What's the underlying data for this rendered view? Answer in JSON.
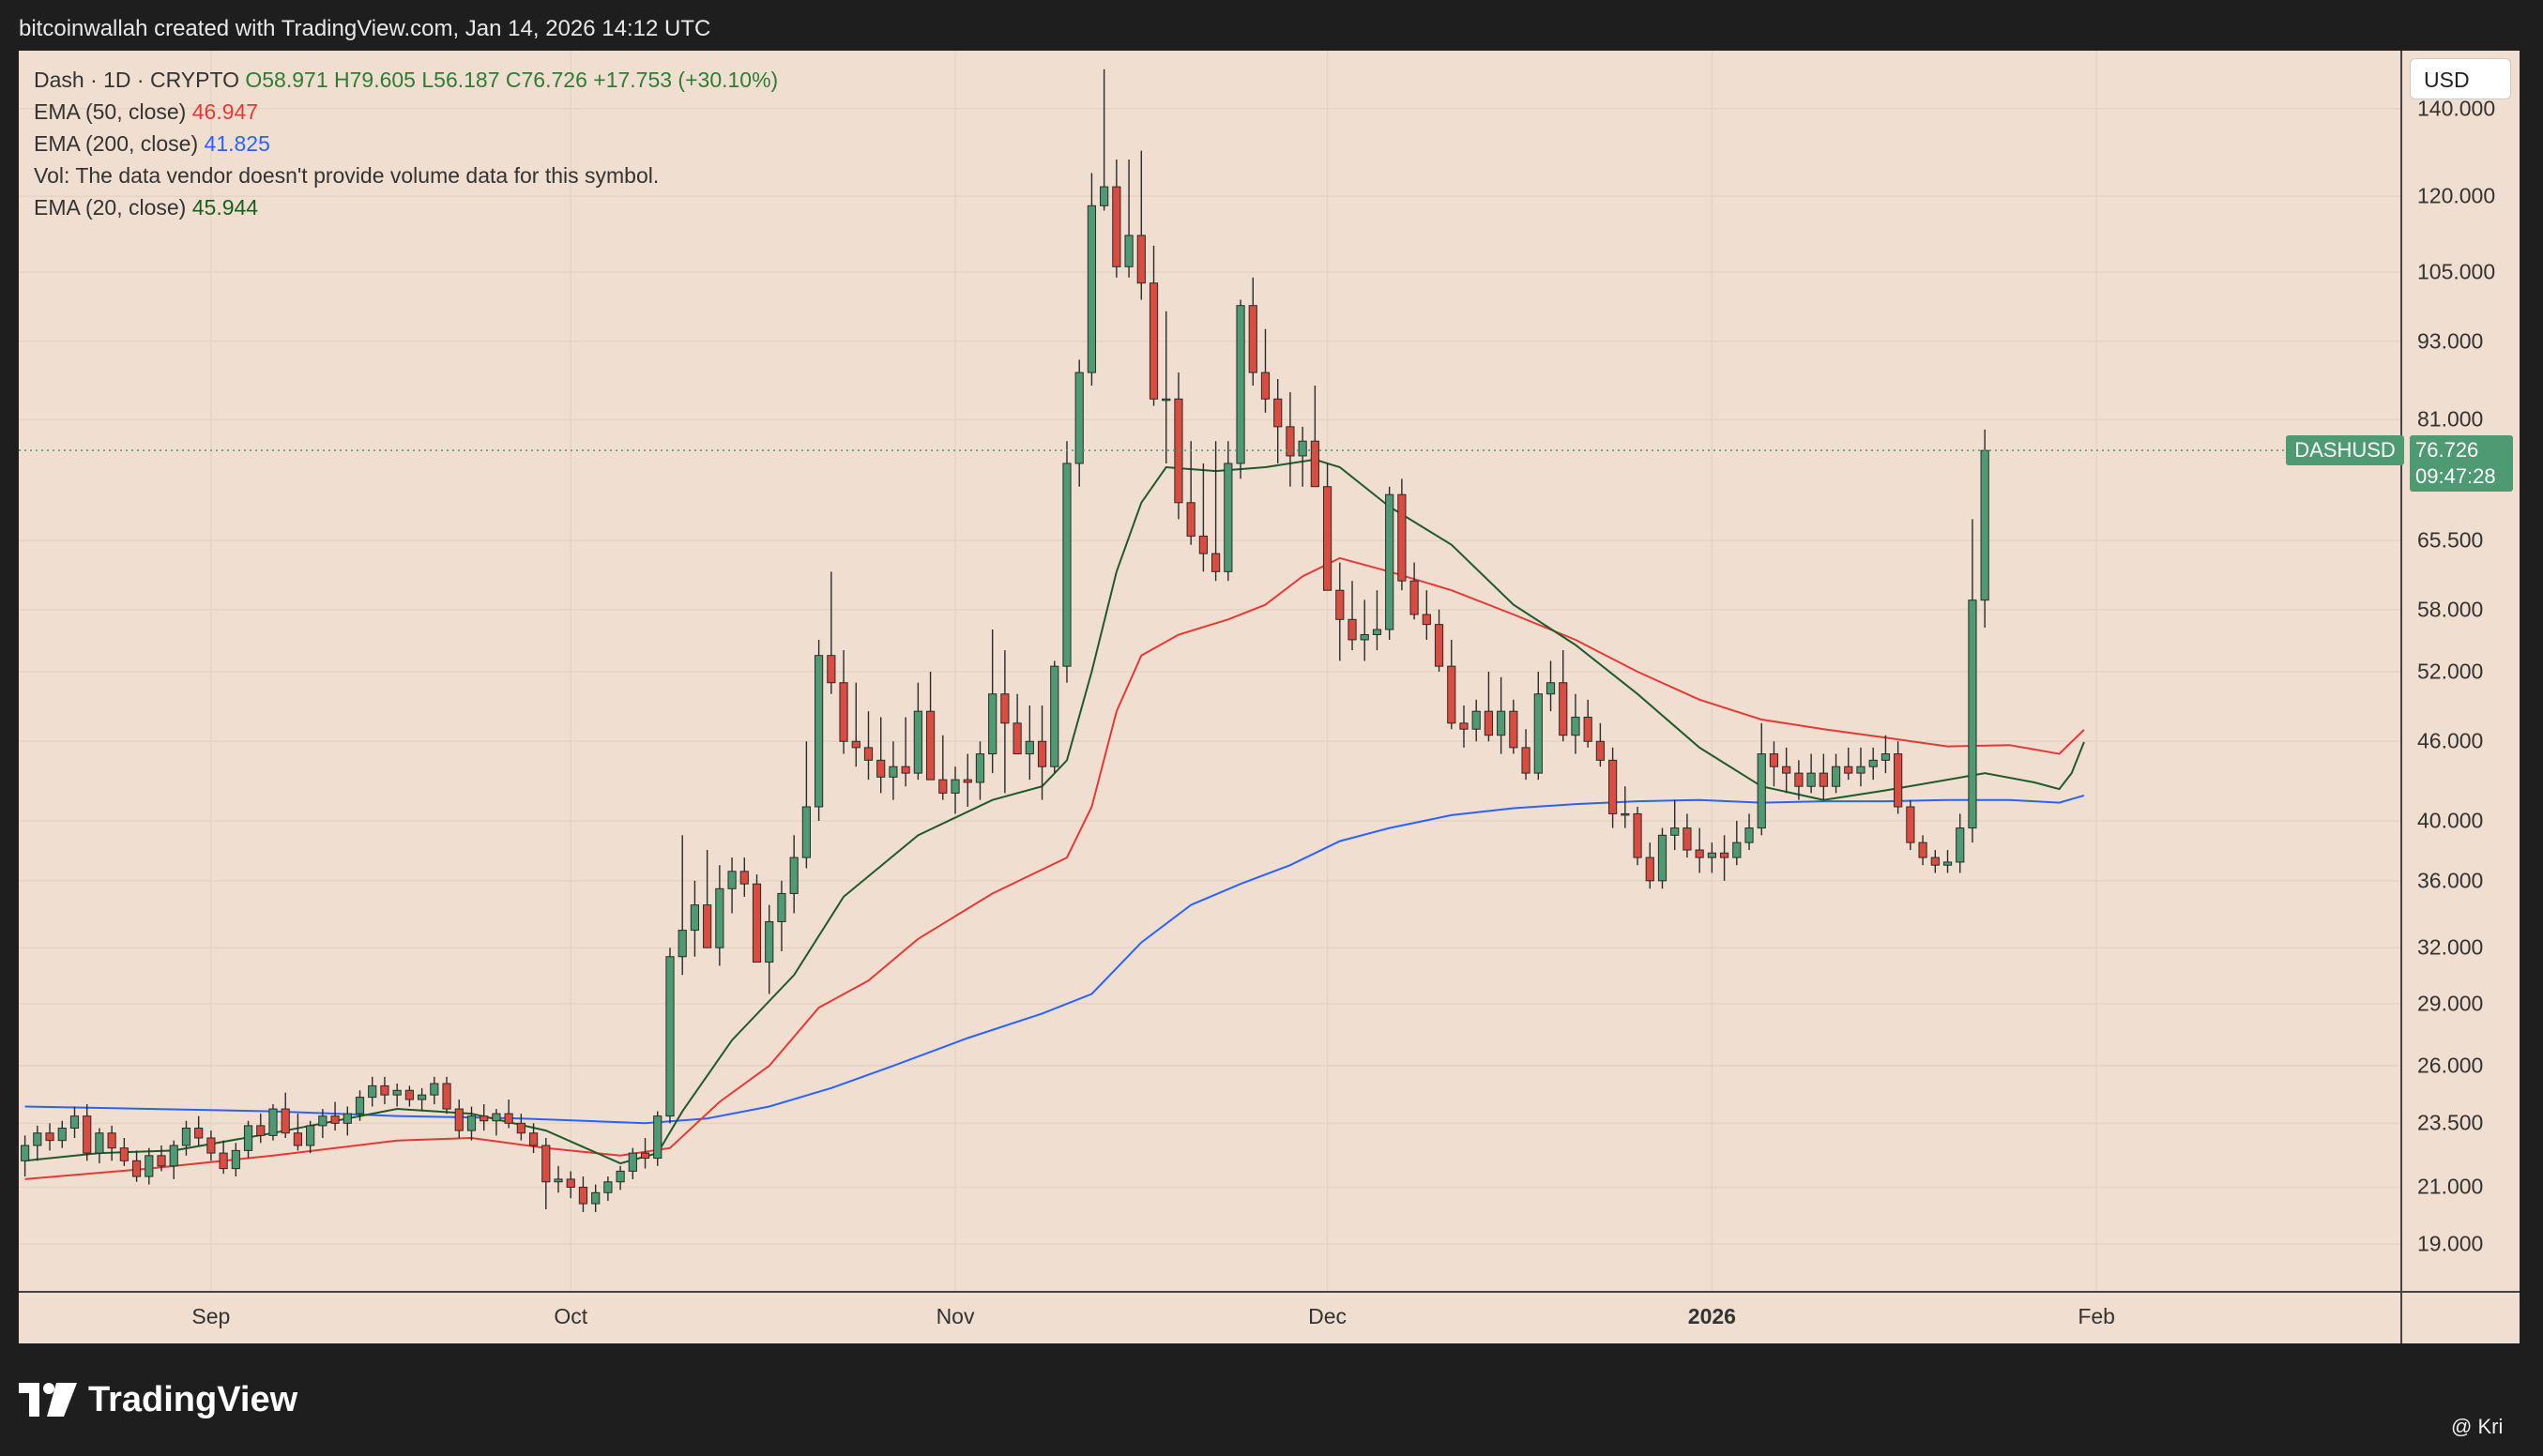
{
  "header": {
    "text": "bitcoinwallah created with TradingView.com, Jan 14, 2026 14:12 UTC"
  },
  "legend": {
    "line1": {
      "name": "Dash · 1D · CRYPTO",
      "o": "O58.971",
      "h": "H79.605",
      "l": "L56.187",
      "c": "C76.726",
      "chg": "+17.753 (+30.10%)"
    },
    "ema50": {
      "label": "EMA (50, close)",
      "value": "46.947"
    },
    "ema200": {
      "label": "EMA (200, close)",
      "value": "41.825"
    },
    "vol": {
      "text": "Vol: The data vendor doesn't provide volume data for this symbol."
    },
    "ema20": {
      "label": "EMA (20, close)",
      "value": "45.944"
    }
  },
  "currency_button": "USD",
  "last_price": {
    "symbol": "DASHUSD",
    "price": "76.726",
    "countdown": "09:47:28"
  },
  "branding": {
    "logo_text": "TradingView",
    "credit": "@ Kri"
  },
  "colors": {
    "up": "#4e9a72",
    "down": "#d94c3f",
    "ema20": "#1e5a2a",
    "ema50": "#e53935",
    "ema200": "#2962ff",
    "background": "#f0dfd0"
  },
  "chart_data": {
    "type": "candlestick",
    "symbol": "DASHUSD",
    "interval": "1D",
    "y_scale": "log",
    "ylim": [
      17.5,
      155
    ],
    "y_ticks": [
      "140.000",
      "120.000",
      "105.000",
      "93.000",
      "81.000",
      "65.500",
      "58.000",
      "52.000",
      "46.000",
      "40.000",
      "36.000",
      "32.000",
      "29.000",
      "26.000",
      "23.500",
      "21.000",
      "19.000"
    ],
    "x_ticks": [
      {
        "label": "Sep",
        "bold": false
      },
      {
        "label": "Oct",
        "bold": false
      },
      {
        "label": "Nov",
        "bold": false
      },
      {
        "label": "Dec",
        "bold": false
      },
      {
        "label": "2026",
        "bold": true
      },
      {
        "label": "Feb",
        "bold": false
      }
    ],
    "x_tick_index": [
      15,
      44,
      75,
      105,
      136,
      167
    ],
    "n_slots": 192,
    "candles": [
      [
        22.0,
        23.0,
        21.4,
        22.6
      ],
      [
        22.6,
        23.4,
        22.0,
        23.1
      ],
      [
        23.1,
        23.5,
        22.4,
        22.8
      ],
      [
        22.8,
        23.6,
        22.5,
        23.3
      ],
      [
        23.3,
        24.2,
        22.9,
        23.8
      ],
      [
        23.8,
        24.3,
        22.0,
        22.3
      ],
      [
        22.3,
        23.3,
        21.9,
        23.1
      ],
      [
        23.1,
        23.4,
        22.0,
        22.5
      ],
      [
        22.5,
        22.9,
        21.8,
        22.0
      ],
      [
        22.0,
        22.4,
        21.2,
        21.4
      ],
      [
        21.4,
        22.5,
        21.1,
        22.2
      ],
      [
        22.2,
        22.6,
        21.6,
        21.8
      ],
      [
        21.8,
        22.8,
        21.3,
        22.6
      ],
      [
        22.6,
        23.6,
        22.2,
        23.3
      ],
      [
        23.3,
        23.8,
        22.6,
        22.9
      ],
      [
        22.9,
        23.2,
        22.0,
        22.3
      ],
      [
        22.3,
        22.8,
        21.5,
        21.7
      ],
      [
        21.7,
        22.7,
        21.4,
        22.4
      ],
      [
        22.4,
        23.6,
        22.1,
        23.4
      ],
      [
        23.4,
        23.9,
        22.7,
        23.0
      ],
      [
        23.0,
        24.3,
        22.8,
        24.1
      ],
      [
        24.1,
        24.8,
        22.9,
        23.1
      ],
      [
        23.1,
        23.9,
        22.4,
        22.6
      ],
      [
        22.6,
        23.6,
        22.3,
        23.4
      ],
      [
        23.4,
        24.1,
        22.9,
        23.8
      ],
      [
        23.8,
        24.4,
        23.2,
        23.5
      ],
      [
        23.5,
        24.2,
        23.0,
        23.9
      ],
      [
        23.9,
        24.9,
        23.6,
        24.6
      ],
      [
        24.6,
        25.5,
        24.2,
        25.1
      ],
      [
        25.1,
        25.5,
        24.3,
        24.7
      ],
      [
        24.7,
        25.2,
        24.2,
        24.9
      ],
      [
        24.9,
        25.1,
        24.2,
        24.5
      ],
      [
        24.5,
        25.0,
        24.0,
        24.7
      ],
      [
        24.7,
        25.5,
        24.3,
        25.2
      ],
      [
        25.2,
        25.5,
        23.9,
        24.1
      ],
      [
        24.1,
        24.5,
        22.9,
        23.2
      ],
      [
        23.2,
        24.2,
        22.8,
        23.8
      ],
      [
        23.8,
        24.3,
        23.2,
        23.6
      ],
      [
        23.6,
        24.1,
        23.0,
        23.9
      ],
      [
        23.9,
        24.5,
        23.3,
        23.5
      ],
      [
        23.5,
        23.9,
        22.8,
        23.1
      ],
      [
        23.1,
        23.5,
        22.3,
        22.6
      ],
      [
        22.6,
        22.9,
        20.2,
        21.2
      ],
      [
        21.2,
        21.8,
        20.8,
        21.3
      ],
      [
        21.3,
        21.6,
        20.6,
        21.0
      ],
      [
        21.0,
        21.4,
        20.1,
        20.4
      ],
      [
        20.4,
        21.1,
        20.1,
        20.8
      ],
      [
        20.8,
        21.4,
        20.5,
        21.2
      ],
      [
        21.2,
        21.8,
        20.9,
        21.6
      ],
      [
        21.6,
        22.5,
        21.3,
        22.3
      ],
      [
        22.3,
        22.9,
        21.7,
        22.1
      ],
      [
        22.1,
        24.0,
        21.8,
        23.8
      ],
      [
        23.8,
        32.0,
        23.5,
        31.5
      ],
      [
        31.5,
        39.0,
        30.5,
        33.0
      ],
      [
        33.0,
        36.0,
        31.5,
        34.5
      ],
      [
        34.5,
        38.0,
        33.2,
        32.0
      ],
      [
        32.0,
        37.0,
        31.0,
        35.5
      ],
      [
        35.5,
        37.5,
        34.0,
        36.6
      ],
      [
        36.6,
        37.5,
        35.0,
        35.8
      ],
      [
        35.8,
        36.4,
        31.5,
        31.2
      ],
      [
        31.2,
        34.5,
        29.5,
        33.5
      ],
      [
        33.5,
        36.0,
        31.8,
        35.2
      ],
      [
        35.2,
        39.0,
        34.0,
        37.5
      ],
      [
        37.5,
        46.0,
        36.8,
        41.0
      ],
      [
        41.0,
        55.0,
        40.0,
        53.5
      ],
      [
        53.5,
        62.0,
        50.0,
        51.0
      ],
      [
        51.0,
        54.0,
        45.0,
        46.0
      ],
      [
        46.0,
        51.0,
        44.0,
        45.5
      ],
      [
        45.5,
        48.5,
        43.0,
        44.5
      ],
      [
        44.5,
        48.0,
        42.0,
        43.2
      ],
      [
        43.2,
        46.0,
        41.5,
        44.0
      ],
      [
        44.0,
        48.0,
        42.5,
        43.5
      ],
      [
        43.5,
        51.0,
        43.0,
        48.5
      ],
      [
        48.5,
        52.0,
        44.0,
        43.0
      ],
      [
        43.0,
        46.5,
        41.5,
        42.0
      ],
      [
        42.0,
        44.0,
        40.5,
        43.0
      ],
      [
        43.0,
        45.0,
        41.0,
        42.8
      ],
      [
        42.8,
        46.0,
        41.5,
        45.0
      ],
      [
        45.0,
        56.0,
        43.5,
        50.0
      ],
      [
        50.0,
        54.0,
        42.0,
        47.5
      ],
      [
        47.5,
        50.0,
        45.0,
        45.0
      ],
      [
        45.0,
        49.0,
        43.0,
        46.0
      ],
      [
        46.0,
        49.0,
        41.5,
        44.0
      ],
      [
        44.0,
        53.0,
        43.5,
        52.5
      ],
      [
        52.5,
        78.0,
        51.0,
        75.0
      ],
      [
        75.0,
        90.0,
        72.0,
        88.0
      ],
      [
        88.0,
        125.0,
        86.0,
        118.0
      ],
      [
        118.0,
        150.0,
        117.0,
        122.0
      ],
      [
        122.0,
        128.0,
        104.0,
        106.0
      ],
      [
        106.0,
        128.0,
        104.0,
        112.0
      ],
      [
        112.0,
        130.0,
        100.0,
        103.0
      ],
      [
        103.0,
        110.0,
        83.0,
        84.0
      ],
      [
        84.0,
        98.0,
        75.0,
        84.0
      ],
      [
        84.0,
        88.0,
        68.0,
        70.0
      ],
      [
        70.0,
        78.0,
        65.0,
        66.0
      ],
      [
        66.0,
        75.0,
        62.0,
        64.0
      ],
      [
        64.0,
        78.0,
        61.0,
        62.0
      ],
      [
        62.0,
        78.0,
        61.0,
        75.0
      ],
      [
        75.0,
        100.0,
        73.0,
        99.0
      ],
      [
        99.0,
        104.0,
        86.0,
        88.0
      ],
      [
        88.0,
        95.0,
        82.0,
        84.0
      ],
      [
        84.0,
        87.0,
        75.0,
        80.0
      ],
      [
        80.0,
        85.0,
        72.0,
        76.0
      ],
      [
        76.0,
        80.0,
        72.0,
        78.0
      ],
      [
        78.0,
        86.0,
        72.0,
        72.0
      ],
      [
        72.0,
        75.0,
        60.0,
        60.0
      ],
      [
        60.0,
        63.0,
        53.0,
        57.0
      ],
      [
        57.0,
        61.0,
        54.0,
        55.0
      ],
      [
        55.0,
        59.0,
        53.0,
        55.5
      ],
      [
        55.5,
        60.0,
        54.0,
        56.0
      ],
      [
        56.0,
        72.0,
        55.0,
        71.0
      ],
      [
        71.0,
        73.0,
        60.0,
        61.0
      ],
      [
        61.0,
        63.0,
        57.0,
        57.5
      ],
      [
        57.5,
        60.0,
        55.0,
        56.5
      ],
      [
        56.5,
        58.0,
        52.0,
        52.5
      ],
      [
        52.5,
        55.0,
        47.0,
        47.5
      ],
      [
        47.5,
        49.0,
        45.5,
        47.0
      ],
      [
        47.0,
        49.5,
        46.0,
        48.5
      ],
      [
        48.5,
        52.0,
        46.0,
        46.5
      ],
      [
        46.5,
        51.5,
        45.0,
        48.5
      ],
      [
        48.5,
        49.5,
        45.0,
        45.5
      ],
      [
        45.5,
        47.0,
        43.0,
        43.5
      ],
      [
        43.5,
        52.0,
        43.0,
        50.0
      ],
      [
        50.0,
        53.0,
        48.5,
        51.0
      ],
      [
        51.0,
        54.0,
        46.0,
        46.5
      ],
      [
        46.5,
        50.0,
        45.0,
        48.0
      ],
      [
        48.0,
        49.5,
        45.5,
        46.0
      ],
      [
        46.0,
        47.5,
        44.0,
        44.5
      ],
      [
        44.5,
        45.5,
        39.5,
        40.5
      ],
      [
        40.5,
        42.5,
        39.5,
        40.5
      ],
      [
        40.5,
        41.0,
        37.0,
        37.5
      ],
      [
        37.5,
        38.5,
        35.5,
        36.0
      ],
      [
        36.0,
        39.5,
        35.5,
        39.0
      ],
      [
        39.0,
        41.5,
        38.0,
        39.5
      ],
      [
        39.5,
        40.5,
        37.5,
        38.0
      ],
      [
        38.0,
        39.5,
        36.5,
        37.5
      ],
      [
        37.5,
        38.5,
        36.5,
        37.8
      ],
      [
        37.8,
        39.0,
        36.0,
        37.5
      ],
      [
        37.5,
        40.0,
        37.0,
        38.5
      ],
      [
        38.5,
        40.5,
        38.0,
        39.5
      ],
      [
        39.5,
        47.5,
        39.0,
        45.0
      ],
      [
        45.0,
        46.0,
        42.5,
        44.0
      ],
      [
        44.0,
        45.5,
        42.0,
        43.5
      ],
      [
        43.5,
        44.5,
        41.5,
        42.5
      ],
      [
        42.5,
        45.0,
        42.0,
        43.5
      ],
      [
        43.5,
        45.0,
        41.5,
        42.5
      ],
      [
        42.5,
        45.0,
        42.0,
        44.0
      ],
      [
        44.0,
        45.5,
        43.0,
        43.5
      ],
      [
        43.5,
        45.5,
        42.5,
        44.0
      ],
      [
        44.0,
        45.5,
        43.0,
        44.5
      ],
      [
        44.5,
        46.5,
        43.5,
        45.0
      ],
      [
        45.0,
        46.0,
        40.5,
        41.0
      ],
      [
        41.0,
        41.5,
        38.0,
        38.5
      ],
      [
        38.5,
        39.0,
        37.0,
        37.5
      ],
      [
        37.5,
        38.0,
        36.5,
        37.0
      ],
      [
        37.0,
        38.0,
        36.5,
        37.2
      ],
      [
        37.2,
        40.5,
        36.5,
        39.5
      ],
      [
        39.5,
        68.0,
        38.5,
        58.971
      ],
      [
        58.971,
        79.605,
        56.187,
        76.726
      ]
    ],
    "candle_start_index": 0,
    "ema20": [
      [
        0,
        22.0
      ],
      [
        6,
        22.3
      ],
      [
        12,
        22.4
      ],
      [
        20,
        23.1
      ],
      [
        30,
        24.1
      ],
      [
        36,
        23.9
      ],
      [
        42,
        23.2
      ],
      [
        48,
        21.9
      ],
      [
        51,
        22.3
      ],
      [
        53,
        24.0
      ],
      [
        57,
        27.2
      ],
      [
        62,
        30.5
      ],
      [
        66,
        35.0
      ],
      [
        72,
        39.0
      ],
      [
        78,
        41.5
      ],
      [
        82,
        42.5
      ],
      [
        84,
        44.5
      ],
      [
        86,
        52.0
      ],
      [
        88,
        62.0
      ],
      [
        90,
        70.0
      ],
      [
        92,
        74.5
      ],
      [
        96,
        74.0
      ],
      [
        100,
        74.5
      ],
      [
        104,
        75.5
      ],
      [
        106,
        74.5
      ],
      [
        110,
        69.5
      ],
      [
        115,
        65.0
      ],
      [
        120,
        58.5
      ],
      [
        125,
        54.5
      ],
      [
        130,
        50.0
      ],
      [
        135,
        45.5
      ],
      [
        140,
        42.5
      ],
      [
        145,
        41.5
      ],
      [
        150,
        42.2
      ],
      [
        155,
        43.0
      ],
      [
        158,
        43.5
      ],
      [
        162,
        42.8
      ],
      [
        164,
        42.3
      ],
      [
        165,
        43.5
      ],
      [
        166,
        45.944
      ]
    ],
    "ema50": [
      [
        0,
        21.3
      ],
      [
        10,
        21.7
      ],
      [
        20,
        22.2
      ],
      [
        30,
        22.8
      ],
      [
        36,
        22.9
      ],
      [
        42,
        22.5
      ],
      [
        48,
        22.2
      ],
      [
        52,
        22.5
      ],
      [
        56,
        24.4
      ],
      [
        60,
        26.0
      ],
      [
        64,
        28.8
      ],
      [
        68,
        30.2
      ],
      [
        72,
        32.5
      ],
      [
        78,
        35.2
      ],
      [
        84,
        37.5
      ],
      [
        86,
        41.0
      ],
      [
        88,
        48.5
      ],
      [
        90,
        53.5
      ],
      [
        93,
        55.5
      ],
      [
        97,
        57.0
      ],
      [
        100,
        58.5
      ],
      [
        103,
        61.5
      ],
      [
        106,
        63.5
      ],
      [
        110,
        62.0
      ],
      [
        115,
        60.0
      ],
      [
        120,
        57.5
      ],
      [
        125,
        55.0
      ],
      [
        130,
        52.0
      ],
      [
        135,
        49.5
      ],
      [
        140,
        47.8
      ],
      [
        145,
        47.0
      ],
      [
        150,
        46.3
      ],
      [
        155,
        45.6
      ],
      [
        160,
        45.7
      ],
      [
        164,
        45.0
      ],
      [
        166,
        46.947
      ]
    ],
    "ema200": [
      [
        0,
        24.2
      ],
      [
        10,
        24.1
      ],
      [
        20,
        24.0
      ],
      [
        30,
        23.8
      ],
      [
        40,
        23.7
      ],
      [
        50,
        23.5
      ],
      [
        55,
        23.7
      ],
      [
        60,
        24.2
      ],
      [
        65,
        25.0
      ],
      [
        70,
        26.0
      ],
      [
        76,
        27.3
      ],
      [
        82,
        28.5
      ],
      [
        86,
        29.5
      ],
      [
        90,
        32.3
      ],
      [
        94,
        34.5
      ],
      [
        98,
        35.8
      ],
      [
        102,
        37.0
      ],
      [
        106,
        38.6
      ],
      [
        110,
        39.5
      ],
      [
        115,
        40.4
      ],
      [
        120,
        40.9
      ],
      [
        125,
        41.2
      ],
      [
        130,
        41.4
      ],
      [
        135,
        41.5
      ],
      [
        140,
        41.3
      ],
      [
        145,
        41.4
      ],
      [
        150,
        41.4
      ],
      [
        155,
        41.5
      ],
      [
        160,
        41.5
      ],
      [
        164,
        41.3
      ],
      [
        166,
        41.825
      ]
    ]
  }
}
